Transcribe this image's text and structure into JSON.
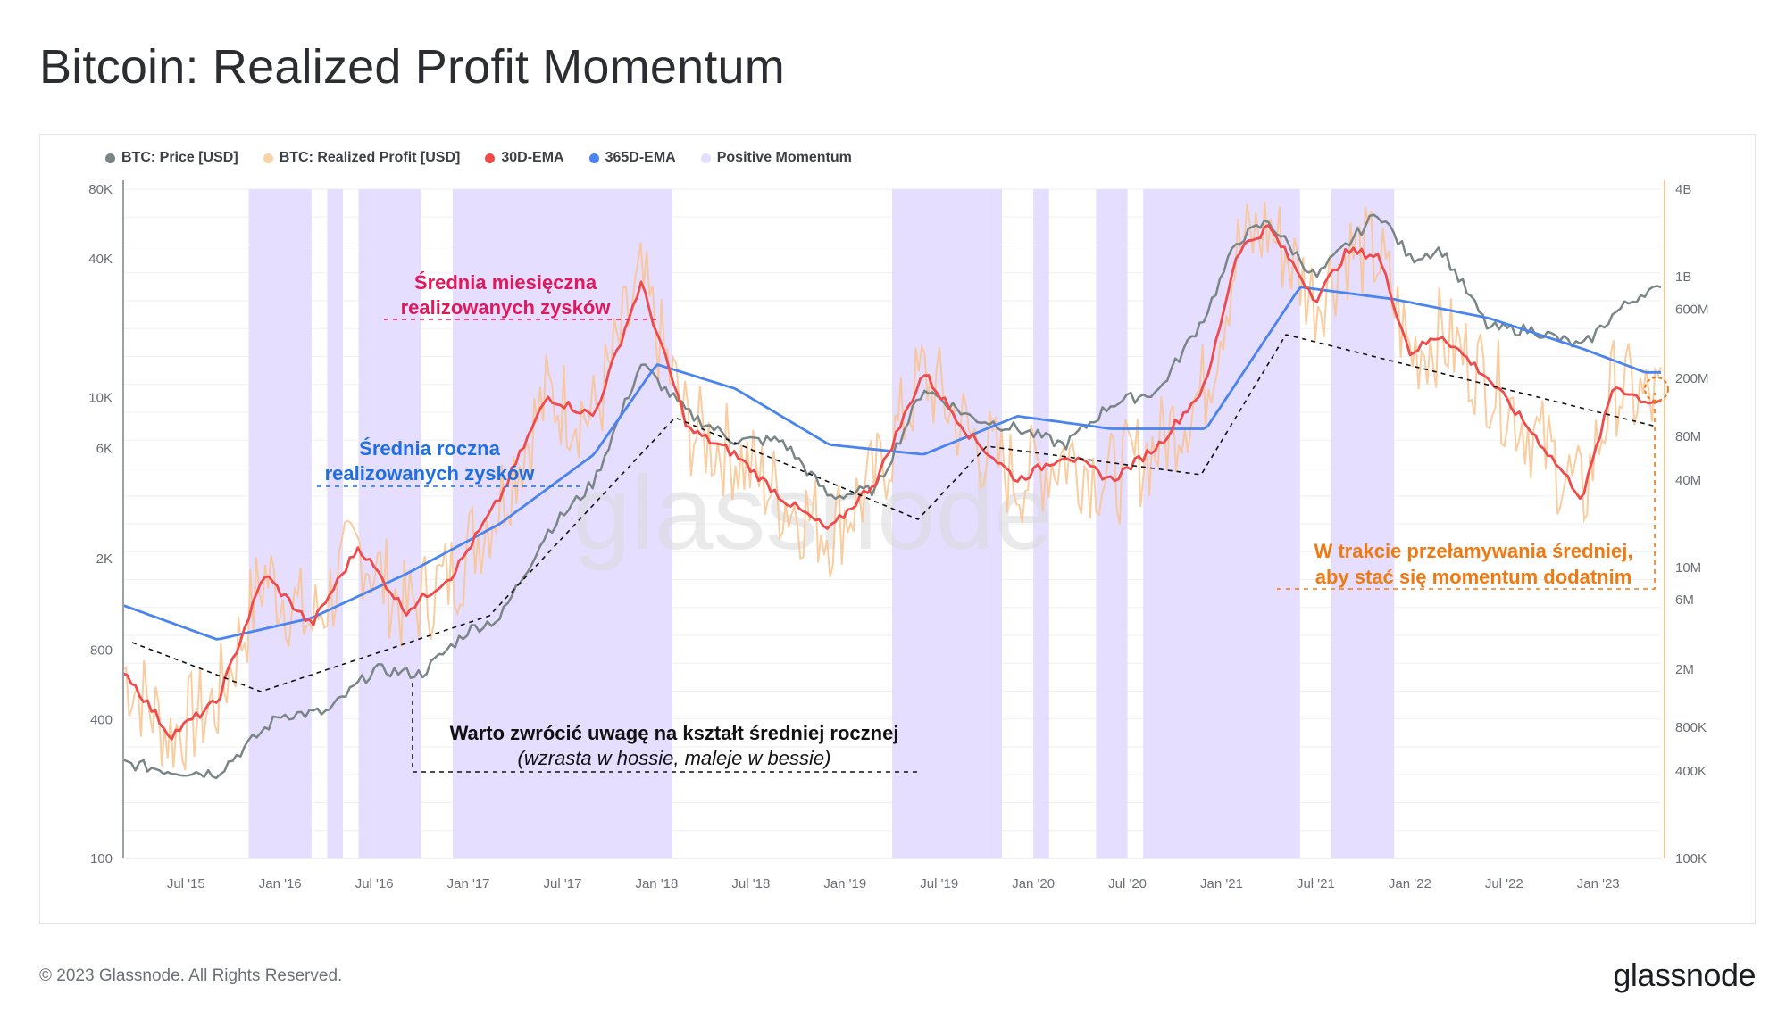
{
  "title": "Bitcoin: Realized Profit Momentum",
  "footer": {
    "copyright": "© 2023 Glassnode. All Rights Reserved.",
    "logo": "glassnode"
  },
  "watermark": "glassnode",
  "colors": {
    "price": "#7a8586",
    "realized_profit": "#f9c48f",
    "ema30": "#f04a4a",
    "ema365": "#4a84f0",
    "momentum": "#e3daff",
    "annotation_pink": "#e0195b",
    "annotation_blue": "#1f6fe0",
    "annotation_orange": "#f07a12"
  },
  "legend": [
    {
      "label": "BTC: Price [USD]",
      "color": "#7a8586"
    },
    {
      "label": "BTC: Realized Profit [USD]",
      "color": "#f9d2a8"
    },
    {
      "label": "30D-EMA",
      "color": "#f04a4a"
    },
    {
      "label": "365D-EMA",
      "color": "#4a84f0"
    },
    {
      "label": "Positive Momentum",
      "color": "#e6deff"
    }
  ],
  "annotations": {
    "monthly_line1": "Średnia miesięczna",
    "monthly_line2": "realizowanych zysków",
    "yearly_line1": "Średnia roczna",
    "yearly_line2": "realizowanych zysków",
    "note_line1": "Warto zwrócić uwagę na kształt średniej rocznej",
    "note_line2": "(wzrasta w hossie, maleje w bessie)",
    "breakout_line1": "W trakcie przełamywania średniej,",
    "breakout_line2": "aby stać się momentum dodatnim"
  },
  "chart_data": {
    "type": "line",
    "x_ticks": [
      "Jul '15",
      "Jan '16",
      "Jul '16",
      "Jan '17",
      "Jul '17",
      "Jan '18",
      "Jul '18",
      "Jan '19",
      "Jul '19",
      "Jan '20",
      "Jul '20",
      "Jan '21",
      "Jul '21",
      "Jan '22",
      "Jul '22",
      "Jan '23"
    ],
    "y_left_ticks": [
      "100",
      "400",
      "800",
      "2K",
      "6K",
      "10K",
      "40K",
      "80K"
    ],
    "y_left_scale": "log",
    "y_left_range": [
      100,
      80000
    ],
    "y_right_ticks": [
      "100K",
      "400K",
      "800K",
      "2M",
      "6M",
      "10M",
      "40M",
      "80M",
      "200M",
      "600M",
      "1B",
      "4B"
    ],
    "y_right_scale": "log",
    "y_right_range": [
      100000,
      4000000000
    ],
    "x_range": [
      "2015-03",
      "2023-05"
    ],
    "grid": true,
    "legend_position": "top-left",
    "series": [
      {
        "name": "BTC: Price [USD]",
        "axis": "left",
        "x": [
          "2015-03",
          "2015-06",
          "2015-09",
          "2016-01",
          "2016-04",
          "2016-07",
          "2016-10",
          "2017-01",
          "2017-03",
          "2017-06",
          "2017-09",
          "2017-12",
          "2018-03",
          "2018-06",
          "2018-09",
          "2018-12",
          "2019-03",
          "2019-06",
          "2019-09",
          "2019-12",
          "2020-03",
          "2020-06",
          "2020-09",
          "2020-12",
          "2021-02",
          "2021-04",
          "2021-07",
          "2021-09",
          "2021-11",
          "2022-01",
          "2022-03",
          "2022-06",
          "2022-09",
          "2022-12",
          "2023-02",
          "2023-04"
        ],
        "values": [
          260,
          240,
          235,
          420,
          430,
          660,
          630,
          980,
          1100,
          2600,
          4300,
          14000,
          8500,
          6500,
          6500,
          3700,
          4000,
          11000,
          8200,
          7300,
          6200,
          9400,
          10700,
          23000,
          48000,
          58000,
          33000,
          46000,
          64000,
          40000,
          44000,
          20000,
          19500,
          16500,
          23000,
          29000
        ]
      },
      {
        "name": "30D-EMA",
        "axis": "right",
        "x": [
          "2015-03",
          "2015-06",
          "2015-09",
          "2015-12",
          "2016-03",
          "2016-06",
          "2016-09",
          "2016-12",
          "2017-03",
          "2017-06",
          "2017-09",
          "2017-12",
          "2018-03",
          "2018-06",
          "2018-09",
          "2018-12",
          "2019-03",
          "2019-06",
          "2019-09",
          "2019-12",
          "2020-03",
          "2020-06",
          "2020-09",
          "2020-12",
          "2021-02",
          "2021-04",
          "2021-07",
          "2021-09",
          "2021-11",
          "2022-01",
          "2022-03",
          "2022-06",
          "2022-09",
          "2022-12",
          "2023-02",
          "2023-04"
        ],
        "values": [
          2000000,
          700000,
          1200000,
          9000000,
          4000000,
          14000000,
          5000000,
          9000000,
          30000000,
          150000000,
          110000000,
          900000000,
          90000000,
          60000000,
          30000000,
          18000000,
          40000000,
          220000000,
          80000000,
          40000000,
          60000000,
          40000000,
          70000000,
          180000000,
          1500000000,
          2200000000,
          700000000,
          1500000000,
          1400000000,
          300000000,
          400000000,
          200000000,
          80000000,
          30000000,
          180000000,
          140000000
        ]
      },
      {
        "name": "365D-EMA",
        "axis": "right",
        "x": [
          "2015-03",
          "2015-09",
          "2016-03",
          "2016-09",
          "2017-03",
          "2017-09",
          "2018-01",
          "2018-06",
          "2018-12",
          "2019-06",
          "2019-12",
          "2020-06",
          "2020-12",
          "2021-06",
          "2021-12",
          "2022-06",
          "2022-12",
          "2023-04"
        ],
        "values": [
          5500000,
          3200000,
          4500000,
          9000000,
          20000000,
          60000000,
          250000000,
          170000000,
          70000000,
          60000000,
          110000000,
          90000000,
          90000000,
          850000000,
          700000000,
          520000000,
          320000000,
          220000000
        ]
      }
    ],
    "positive_momentum_periods": [
      [
        "2015-11",
        "2016-03"
      ],
      [
        "2016-04",
        "2016-05"
      ],
      [
        "2016-06",
        "2016-07"
      ],
      [
        "2016-07",
        "2016-10"
      ],
      [
        "2016-12",
        "2018-02"
      ],
      [
        "2019-04",
        "2019-10"
      ],
      [
        "2019-10",
        "2019-11"
      ],
      [
        "2020-01",
        "2020-02"
      ],
      [
        "2020-05",
        "2020-07"
      ],
      [
        "2020-08",
        "2020-11"
      ],
      [
        "2020-11",
        "2021-06"
      ],
      [
        "2021-08",
        "2021-12"
      ]
    ]
  }
}
